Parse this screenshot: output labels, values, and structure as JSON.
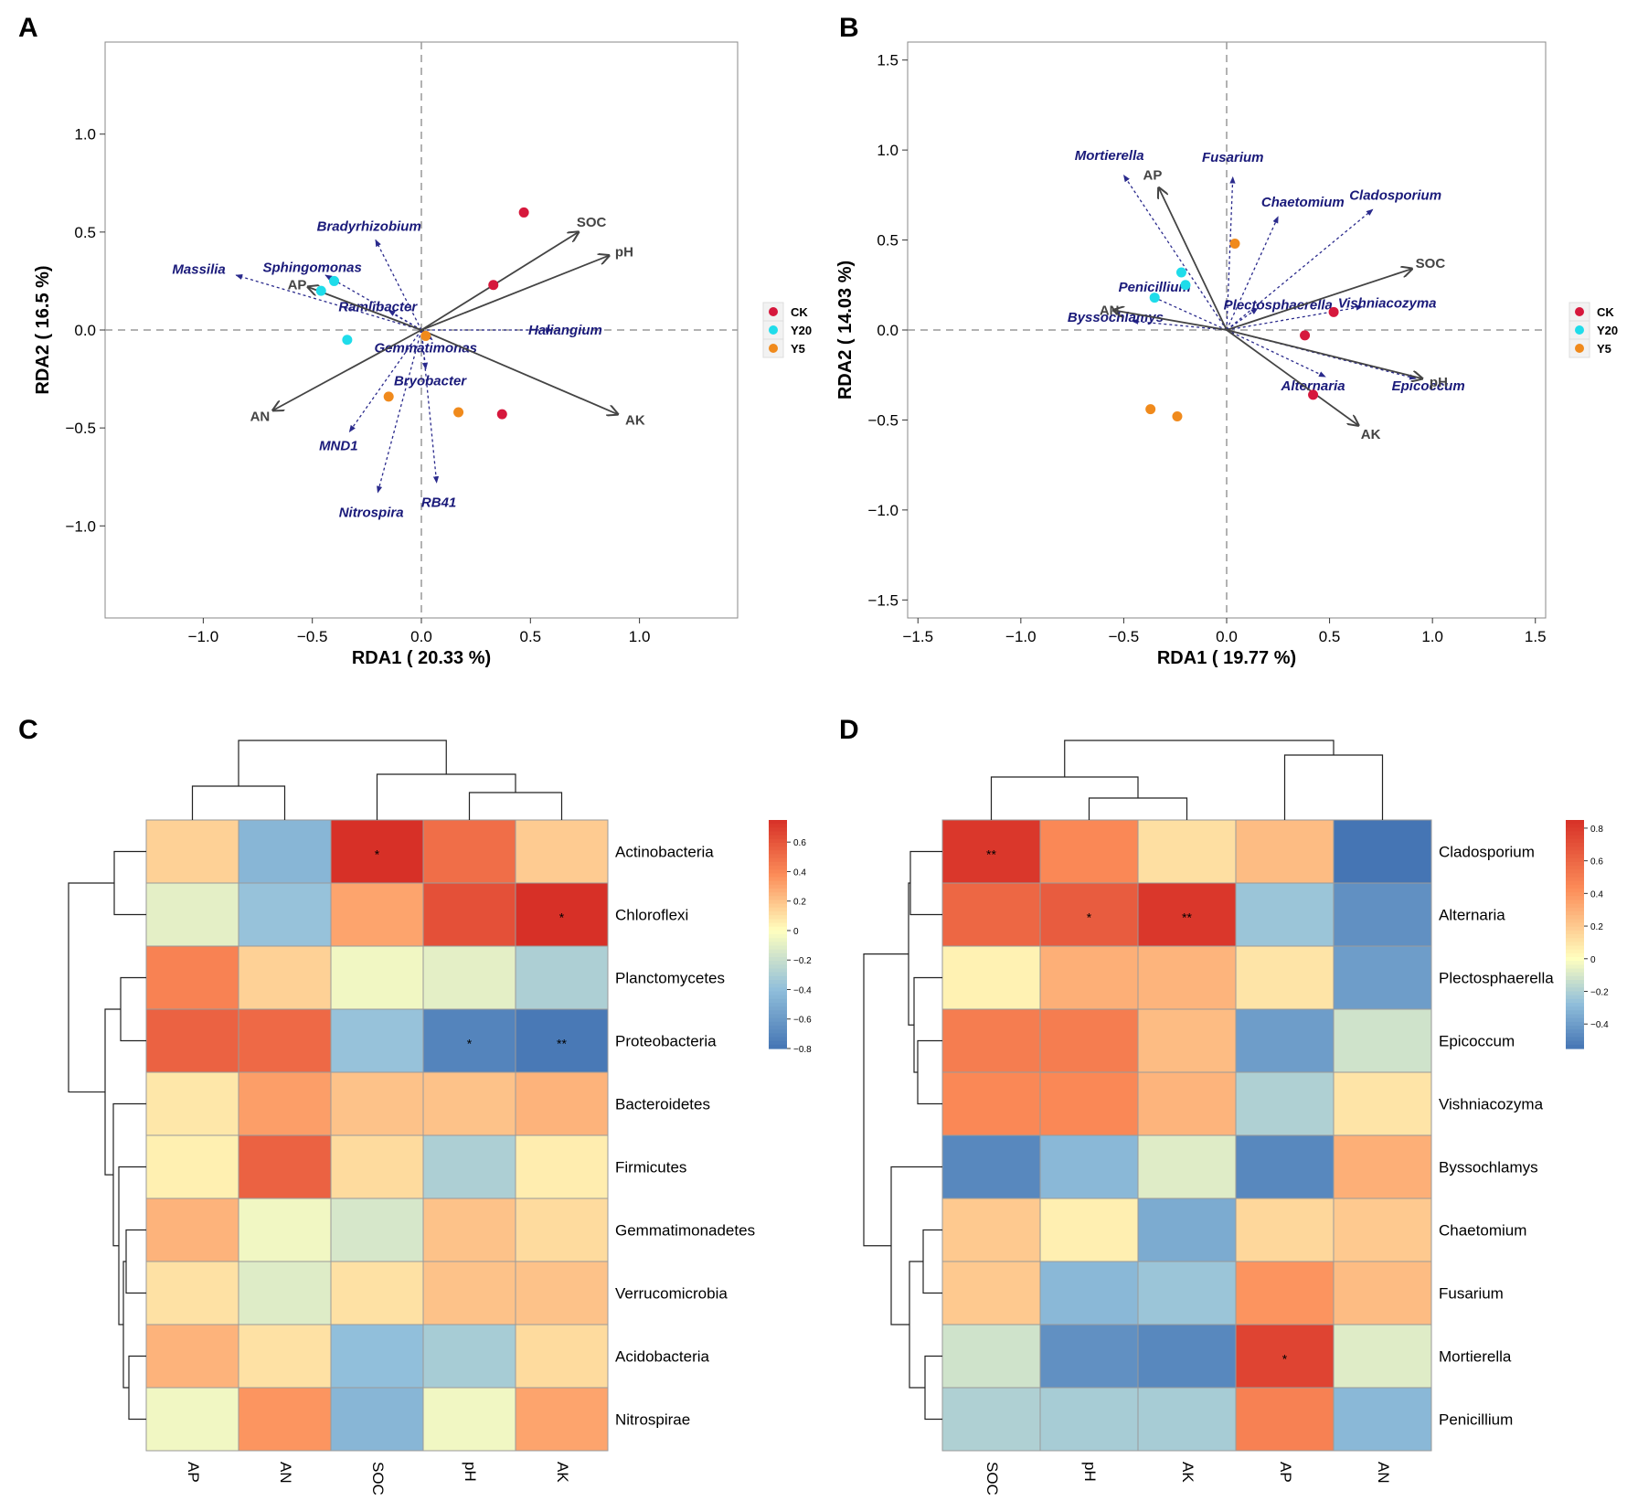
{
  "panels": {
    "A": "A",
    "B": "B",
    "C": "C",
    "D": "D"
  },
  "colors": {
    "CK": "#d6183c",
    "Y20": "#1fdcea",
    "Y5": "#f08a1c",
    "env_arrow": "#444444",
    "genus_arrow": "#2a2a8c"
  },
  "chart_data": [
    {
      "id": "A",
      "type": "scatter",
      "subtype": "rda-biplot",
      "xlabel": "RDA1 ( 20.33 %)",
      "ylabel": "RDA2 ( 16.5 %)",
      "xlim": [
        -1.45,
        1.45
      ],
      "ylim": [
        -1.47,
        1.47
      ],
      "xticks": [
        -1.0,
        -0.5,
        0.0,
        0.5,
        1.0
      ],
      "yticks": [
        -1.0,
        -0.5,
        0.0,
        0.5,
        1.0
      ],
      "xtick_labels": [
        "−1.0",
        "−0.5",
        "0.0",
        "0.5",
        "1.0"
      ],
      "ytick_labels": [
        "−1.0",
        "−0.5",
        "0.0",
        "0.5",
        "1.0"
      ],
      "legend": [
        "CK",
        "Y20",
        "Y5"
      ],
      "samples": [
        {
          "group": "CK",
          "x": 0.47,
          "y": 0.6
        },
        {
          "group": "CK",
          "x": 0.33,
          "y": 0.23
        },
        {
          "group": "CK",
          "x": 0.37,
          "y": -0.43
        },
        {
          "group": "Y20",
          "x": -0.4,
          "y": 0.25
        },
        {
          "group": "Y20",
          "x": -0.46,
          "y": 0.2
        },
        {
          "group": "Y20",
          "x": -0.34,
          "y": -0.05
        },
        {
          "group": "Y5",
          "x": 0.02,
          "y": -0.03
        },
        {
          "group": "Y5",
          "x": -0.15,
          "y": -0.34
        },
        {
          "group": "Y5",
          "x": 0.17,
          "y": -0.42
        }
      ],
      "env_vectors": [
        {
          "label": "SOC",
          "x": 0.72,
          "y": 0.5,
          "lx": 0.78,
          "ly": 0.55
        },
        {
          "label": "pH",
          "x": 0.86,
          "y": 0.38,
          "lx": 0.93,
          "ly": 0.4
        },
        {
          "label": "AP",
          "x": -0.52,
          "y": 0.22,
          "lx": -0.57,
          "ly": 0.23
        },
        {
          "label": "AN",
          "x": -0.68,
          "y": -0.41,
          "lx": -0.74,
          "ly": -0.44
        },
        {
          "label": "AK",
          "x": 0.9,
          "y": -0.43,
          "lx": 0.98,
          "ly": -0.46
        }
      ],
      "genus_vectors": [
        {
          "label": "Bradyrhizobium",
          "x": -0.21,
          "y": 0.46,
          "lx": -0.24,
          "ly": 0.53
        },
        {
          "label": "Massilia",
          "x": -0.85,
          "y": 0.28,
          "lx": -1.02,
          "ly": 0.31
        },
        {
          "label": "Sphingomonas",
          "x": -0.44,
          "y": 0.28,
          "lx": -0.5,
          "ly": 0.32
        },
        {
          "label": "Ramlibacter",
          "x": -0.15,
          "y": 0.1,
          "lx": -0.2,
          "ly": 0.12
        },
        {
          "label": "Haliangium",
          "x": 0.6,
          "y": 0.0,
          "lx": 0.66,
          "ly": 0.0
        },
        {
          "label": "Gemmatimonas",
          "x": 0.05,
          "y": -0.05,
          "lx": 0.02,
          "ly": -0.09
        },
        {
          "label": "Bryobacter",
          "x": 0.02,
          "y": -0.2,
          "lx": 0.04,
          "ly": -0.26
        },
        {
          "label": "MND1",
          "x": -0.33,
          "y": -0.52,
          "lx": -0.38,
          "ly": -0.59
        },
        {
          "label": "Nitrospira",
          "x": -0.2,
          "y": -0.83,
          "lx": -0.23,
          "ly": -0.93
        },
        {
          "label": "RB41",
          "x": 0.07,
          "y": -0.78,
          "lx": 0.08,
          "ly": -0.88
        }
      ]
    },
    {
      "id": "B",
      "type": "scatter",
      "subtype": "rda-biplot",
      "xlabel": "RDA1 ( 19.77 %)",
      "ylabel": "RDA2 ( 14.03 %)",
      "xlim": [
        -1.55,
        1.55
      ],
      "ylim": [
        -1.6,
        1.6
      ],
      "xticks": [
        -1.5,
        -1.0,
        -0.5,
        0.0,
        0.5,
        1.0,
        1.5
      ],
      "yticks": [
        -1.5,
        -1.0,
        -0.5,
        0.0,
        0.5,
        1.0,
        1.5
      ],
      "xtick_labels": [
        "−1.5",
        "−1.0",
        "−0.5",
        "0.0",
        "0.5",
        "1.0",
        "1.5"
      ],
      "ytick_labels": [
        "−1.5",
        "−1.0",
        "−0.5",
        "0.0",
        "0.5",
        "1.0",
        "1.5"
      ],
      "legend": [
        "CK",
        "Y20",
        "Y5"
      ],
      "samples": [
        {
          "group": "CK",
          "x": 0.52,
          "y": 0.1
        },
        {
          "group": "CK",
          "x": 0.38,
          "y": -0.03
        },
        {
          "group": "CK",
          "x": 0.42,
          "y": -0.36
        },
        {
          "group": "Y20",
          "x": -0.22,
          "y": 0.32
        },
        {
          "group": "Y20",
          "x": -0.2,
          "y": 0.25
        },
        {
          "group": "Y20",
          "x": -0.35,
          "y": 0.18
        },
        {
          "group": "Y5",
          "x": 0.04,
          "y": 0.48
        },
        {
          "group": "Y5",
          "x": -0.37,
          "y": -0.44
        },
        {
          "group": "Y5",
          "x": -0.24,
          "y": -0.48
        }
      ],
      "env_vectors": [
        {
          "label": "AP",
          "x": -0.33,
          "y": 0.79,
          "lx": -0.36,
          "ly": 0.86
        },
        {
          "label": "SOC",
          "x": 0.9,
          "y": 0.34,
          "lx": 0.99,
          "ly": 0.37
        },
        {
          "label": "AN",
          "x": -0.55,
          "y": 0.11,
          "lx": -0.57,
          "ly": 0.11
        },
        {
          "label": "pH",
          "x": 0.95,
          "y": -0.27,
          "lx": 1.03,
          "ly": -0.29
        },
        {
          "label": "AK",
          "x": 0.64,
          "y": -0.53,
          "lx": 0.7,
          "ly": -0.58
        }
      ],
      "genus_vectors": [
        {
          "label": "Mortierella",
          "x": -0.5,
          "y": 0.86,
          "lx": -0.57,
          "ly": 0.97
        },
        {
          "label": "Fusarium",
          "x": 0.03,
          "y": 0.85,
          "lx": 0.03,
          "ly": 0.96
        },
        {
          "label": "Chaetomium",
          "x": 0.25,
          "y": 0.63,
          "lx": 0.37,
          "ly": 0.71
        },
        {
          "label": "Cladosporium",
          "x": 0.71,
          "y": 0.67,
          "lx": 0.82,
          "ly": 0.75
        },
        {
          "label": "Penicillium",
          "x": -0.37,
          "y": 0.19,
          "lx": -0.35,
          "ly": 0.24
        },
        {
          "label": "Byssochlamys",
          "x": -0.46,
          "y": 0.05,
          "lx": -0.54,
          "ly": 0.07
        },
        {
          "label": "Plectosphaerella",
          "x": 0.15,
          "y": 0.12,
          "lx": 0.25,
          "ly": 0.14
        },
        {
          "label": "Vishniacozyma",
          "x": 0.66,
          "y": 0.13,
          "lx": 0.78,
          "ly": 0.15
        },
        {
          "label": "Alternaria",
          "x": 0.48,
          "y": -0.26,
          "lx": 0.42,
          "ly": -0.31
        },
        {
          "label": "Epicoccum",
          "x": 0.92,
          "y": -0.27,
          "lx": 0.98,
          "ly": -0.31
        }
      ]
    },
    {
      "id": "C",
      "type": "heatmap",
      "rows": [
        "Actinobacteria",
        "Chloroflexi",
        "Planctomycetes",
        "Proteobacteria",
        "Bacteroidetes",
        "Firmicutes",
        "Gemmatimonadetes",
        "Verrucomicrobia",
        "Acidobacteria",
        "Nitrospirae"
      ],
      "columns": [
        "AP",
        "AN",
        "SOC",
        "pH",
        "AK"
      ],
      "values": [
        [
          0.15,
          -0.45,
          0.75,
          0.5,
          0.17
        ],
        [
          -0.1,
          -0.38,
          0.3,
          0.62,
          0.75
        ],
        [
          0.42,
          0.15,
          -0.05,
          -0.1,
          -0.3
        ],
        [
          0.55,
          0.52,
          -0.38,
          -0.72,
          -0.78
        ],
        [
          0.08,
          0.32,
          0.2,
          0.2,
          0.25
        ],
        [
          0.05,
          0.55,
          0.12,
          -0.3,
          0.06
        ],
        [
          0.25,
          -0.05,
          -0.15,
          0.2,
          0.12
        ],
        [
          0.1,
          -0.12,
          0.1,
          0.2,
          0.2
        ],
        [
          0.25,
          0.1,
          -0.4,
          -0.32,
          0.12
        ],
        [
          -0.05,
          0.35,
          -0.45,
          -0.05,
          0.3
        ]
      ],
      "stars": [
        [
          "",
          "",
          "*",
          "",
          ""
        ],
        [
          "",
          "",
          "",
          "",
          "*"
        ],
        [
          "",
          "",
          "",
          "",
          ""
        ],
        [
          "",
          "",
          "",
          "*",
          "**"
        ],
        [
          "",
          "",
          "",
          "",
          ""
        ],
        [
          "",
          "",
          "",
          "",
          ""
        ],
        [
          "",
          "",
          "",
          "",
          ""
        ],
        [
          "",
          "",
          "",
          "",
          ""
        ],
        [
          "",
          "",
          "",
          "",
          ""
        ],
        [
          "",
          "",
          "",
          "",
          ""
        ]
      ],
      "colorbar": {
        "min": -0.8,
        "max": 0.75,
        "ticks": [
          0.6,
          0.4,
          0.2,
          0,
          -0.2,
          -0.4,
          -0.6,
          -0.8
        ],
        "tick_labels": [
          "0.6",
          "0.4",
          "0.2",
          "0",
          "−0.2",
          "−0.4",
          "−0.6",
          "−0.8"
        ]
      }
    },
    {
      "id": "D",
      "type": "heatmap",
      "rows": [
        "Cladosporium",
        "Alternaria",
        "Plectosphaerella",
        "Epicoccum",
        "Vishniacozyma",
        "Byssochlamys",
        "Chaetomium",
        "Fusarium",
        "Mortierella",
        "Penicillium"
      ],
      "columns": [
        "SOC",
        "pH",
        "AK",
        "AP",
        "AN"
      ],
      "values": [
        [
          0.82,
          0.45,
          0.12,
          0.25,
          -0.55
        ],
        [
          0.6,
          0.65,
          0.82,
          -0.25,
          -0.45
        ],
        [
          0.05,
          0.3,
          0.28,
          0.1,
          -0.4
        ],
        [
          0.5,
          0.5,
          0.25,
          -0.4,
          -0.12
        ],
        [
          0.45,
          0.45,
          0.28,
          -0.2,
          0.1
        ],
        [
          -0.48,
          -0.3,
          -0.08,
          -0.48,
          0.3
        ],
        [
          0.2,
          0.06,
          -0.35,
          0.15,
          0.2
        ],
        [
          0.2,
          -0.3,
          -0.25,
          0.4,
          0.25
        ],
        [
          -0.12,
          -0.45,
          -0.48,
          0.76,
          -0.08
        ],
        [
          -0.2,
          -0.22,
          -0.22,
          0.48,
          -0.3
        ]
      ],
      "stars": [
        [
          "**",
          "",
          "",
          "",
          ""
        ],
        [
          "",
          "*",
          "**",
          "",
          ""
        ],
        [
          "",
          "",
          "",
          "",
          ""
        ],
        [
          "",
          "",
          "",
          "",
          ""
        ],
        [
          "",
          "",
          "",
          "",
          ""
        ],
        [
          "",
          "",
          "",
          "",
          ""
        ],
        [
          "",
          "",
          "",
          "",
          ""
        ],
        [
          "",
          "",
          "",
          "",
          ""
        ],
        [
          "",
          "",
          "",
          "*",
          ""
        ],
        [
          "",
          "",
          "",
          "",
          ""
        ]
      ],
      "colorbar": {
        "min": -0.55,
        "max": 0.85,
        "ticks": [
          0.8,
          0.6,
          0.4,
          0.2,
          0,
          -0.2,
          -0.4
        ],
        "tick_labels": [
          "0.8",
          "0.6",
          "0.4",
          "0.2",
          "0",
          "−0.2",
          "−0.4"
        ]
      }
    }
  ]
}
